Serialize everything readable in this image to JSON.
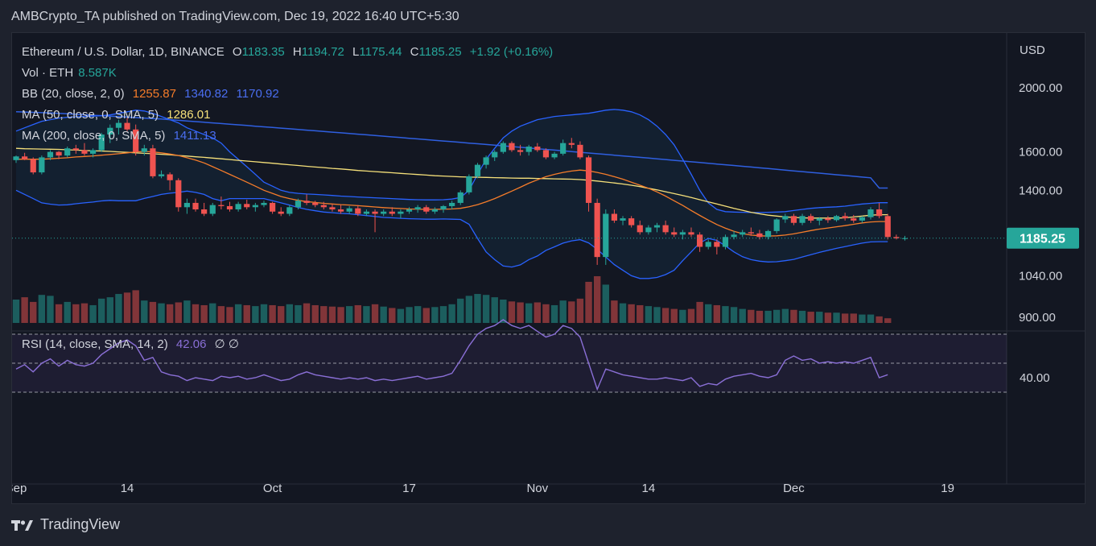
{
  "publisher_line": "AMBCrypto_TA published on TradingView.com, Dec 19, 2022 16:40 UTC+5:30",
  "footer_brand": "TradingView",
  "legend": {
    "symbol": "Ethereum / U.S. Dollar, 1D, BINANCE",
    "o_label": "O",
    "o": "1183.35",
    "h_label": "H",
    "h": "1194.72",
    "l_label": "L",
    "l": "1175.44",
    "c_label": "C",
    "c": "1185.25",
    "change": "+1.92 (+0.16%)",
    "vol_label": "Vol · ETH",
    "vol_value": "8.587K",
    "bb_label": "BB (20, close, 2, 0)",
    "bb_basis": "1255.87",
    "bb_upper": "1340.82",
    "bb_lower": "1170.92",
    "ma50_label": "MA (50, close, 0, SMA, 5)",
    "ma50_value": "1286.01",
    "ma200_label": "MA (200, close, 0, SMA, 5)",
    "ma200_value": "1411.13",
    "rsi_label": "RSI (14, close, SMA, 14, 2)",
    "rsi_value": "42.06",
    "rsi_extra": "∅ ∅"
  },
  "colors": {
    "up": "#26a69a",
    "down": "#ef5350",
    "bb_basis": "#f57c2a",
    "bb_band": "#2962ff",
    "ma50": "#f5e07a",
    "ma200": "#2f5fe0",
    "rsi": "#8a6fd6",
    "price_tag": "#26a69a"
  },
  "chart_data": {
    "type": "candlestick",
    "y_axis_unit": "USD",
    "y_ticks": [
      900,
      1040,
      1400,
      1600,
      2000
    ],
    "y_tick_labels": [
      "900.00",
      "1040.00",
      "1400.00",
      "1600.00",
      "2000.00"
    ],
    "last_price": 1185.25,
    "last_price_label": "1185.25",
    "x_tick_labels": [
      {
        "label": "Sep",
        "index": 0
      },
      {
        "label": "14",
        "index": 13
      },
      {
        "label": "Oct",
        "index": 30
      },
      {
        "label": "17",
        "index": 46
      },
      {
        "label": "Nov",
        "index": 61
      },
      {
        "label": "14",
        "index": 74
      },
      {
        "label": "Dec",
        "index": 91
      },
      {
        "label": "19",
        "index": 109
      }
    ],
    "candles": [
      [
        1555,
        1580,
        1540,
        1575
      ],
      [
        1575,
        1595,
        1555,
        1560
      ],
      [
        1560,
        1570,
        1480,
        1490
      ],
      [
        1490,
        1580,
        1480,
        1570
      ],
      [
        1570,
        1610,
        1555,
        1600
      ],
      [
        1600,
        1605,
        1560,
        1580
      ],
      [
        1580,
        1630,
        1570,
        1620
      ],
      [
        1620,
        1640,
        1590,
        1610
      ],
      [
        1610,
        1650,
        1580,
        1590
      ],
      [
        1590,
        1620,
        1570,
        1610
      ],
      [
        1610,
        1710,
        1600,
        1700
      ],
      [
        1700,
        1760,
        1650,
        1740
      ],
      [
        1740,
        1790,
        1700,
        1770
      ],
      [
        1770,
        1800,
        1720,
        1730
      ],
      [
        1730,
        1760,
        1580,
        1600
      ],
      [
        1600,
        1640,
        1580,
        1620
      ],
      [
        1620,
        1640,
        1460,
        1470
      ],
      [
        1470,
        1500,
        1460,
        1480
      ],
      [
        1480,
        1490,
        1400,
        1450
      ],
      [
        1450,
        1460,
        1300,
        1320
      ],
      [
        1320,
        1360,
        1290,
        1340
      ],
      [
        1340,
        1360,
        1300,
        1310
      ],
      [
        1310,
        1340,
        1280,
        1290
      ],
      [
        1290,
        1340,
        1280,
        1330
      ],
      [
        1330,
        1370,
        1310,
        1325
      ],
      [
        1325,
        1345,
        1300,
        1310
      ],
      [
        1310,
        1345,
        1300,
        1335
      ],
      [
        1335,
        1355,
        1310,
        1320
      ],
      [
        1320,
        1340,
        1300,
        1330
      ],
      [
        1330,
        1350,
        1320,
        1340
      ],
      [
        1340,
        1345,
        1290,
        1300
      ],
      [
        1300,
        1320,
        1280,
        1290
      ],
      [
        1290,
        1330,
        1280,
        1320
      ],
      [
        1320,
        1360,
        1310,
        1350
      ],
      [
        1350,
        1380,
        1330,
        1340
      ],
      [
        1340,
        1350,
        1320,
        1330
      ],
      [
        1330,
        1345,
        1310,
        1320
      ],
      [
        1320,
        1335,
        1300,
        1310
      ],
      [
        1310,
        1330,
        1290,
        1300
      ],
      [
        1300,
        1325,
        1290,
        1315
      ],
      [
        1315,
        1330,
        1280,
        1290
      ],
      [
        1290,
        1310,
        1280,
        1300
      ],
      [
        1300,
        1310,
        1210,
        1290
      ],
      [
        1290,
        1310,
        1280,
        1300
      ],
      [
        1300,
        1320,
        1280,
        1290
      ],
      [
        1290,
        1310,
        1270,
        1300
      ],
      [
        1300,
        1320,
        1290,
        1310
      ],
      [
        1310,
        1330,
        1295,
        1320
      ],
      [
        1320,
        1330,
        1290,
        1300
      ],
      [
        1300,
        1320,
        1290,
        1310
      ],
      [
        1310,
        1330,
        1295,
        1325
      ],
      [
        1325,
        1350,
        1310,
        1340
      ],
      [
        1340,
        1400,
        1330,
        1390
      ],
      [
        1390,
        1480,
        1380,
        1470
      ],
      [
        1470,
        1540,
        1460,
        1530
      ],
      [
        1530,
        1580,
        1510,
        1570
      ],
      [
        1570,
        1610,
        1550,
        1600
      ],
      [
        1600,
        1660,
        1590,
        1650
      ],
      [
        1650,
        1660,
        1600,
        1610
      ],
      [
        1610,
        1640,
        1580,
        1600
      ],
      [
        1600,
        1640,
        1580,
        1630
      ],
      [
        1630,
        1650,
        1600,
        1610
      ],
      [
        1610,
        1620,
        1560,
        1570
      ],
      [
        1570,
        1600,
        1560,
        1590
      ],
      [
        1590,
        1670,
        1580,
        1650
      ],
      [
        1650,
        1680,
        1620,
        1640
      ],
      [
        1640,
        1660,
        1560,
        1570
      ],
      [
        1570,
        1580,
        1300,
        1340
      ],
      [
        1340,
        1360,
        1080,
        1110
      ],
      [
        1110,
        1310,
        1080,
        1290
      ],
      [
        1290,
        1310,
        1250,
        1260
      ],
      [
        1260,
        1280,
        1240,
        1270
      ],
      [
        1270,
        1280,
        1230,
        1240
      ],
      [
        1240,
        1260,
        1200,
        1210
      ],
      [
        1210,
        1240,
        1200,
        1230
      ],
      [
        1230,
        1250,
        1210,
        1240
      ],
      [
        1240,
        1260,
        1200,
        1210
      ],
      [
        1210,
        1230,
        1190,
        1200
      ],
      [
        1200,
        1220,
        1180,
        1210
      ],
      [
        1210,
        1230,
        1190,
        1200
      ],
      [
        1200,
        1210,
        1130,
        1150
      ],
      [
        1150,
        1180,
        1140,
        1170
      ],
      [
        1170,
        1180,
        1120,
        1150
      ],
      [
        1150,
        1200,
        1140,
        1190
      ],
      [
        1190,
        1215,
        1180,
        1200
      ],
      [
        1200,
        1220,
        1190,
        1210
      ],
      [
        1210,
        1230,
        1195,
        1205
      ],
      [
        1205,
        1220,
        1180,
        1190
      ],
      [
        1190,
        1220,
        1180,
        1215
      ],
      [
        1215,
        1270,
        1205,
        1265
      ],
      [
        1265,
        1290,
        1250,
        1280
      ],
      [
        1280,
        1290,
        1240,
        1250
      ],
      [
        1250,
        1290,
        1240,
        1280
      ],
      [
        1280,
        1290,
        1250,
        1260
      ],
      [
        1260,
        1275,
        1240,
        1270
      ],
      [
        1270,
        1280,
        1250,
        1262
      ],
      [
        1262,
        1285,
        1255,
        1280
      ],
      [
        1280,
        1295,
        1260,
        1270
      ],
      [
        1270,
        1285,
        1250,
        1260
      ],
      [
        1260,
        1280,
        1250,
        1275
      ],
      [
        1275,
        1320,
        1265,
        1310
      ],
      [
        1310,
        1340,
        1270,
        1280
      ],
      [
        1280,
        1290,
        1180,
        1190
      ],
      [
        1190,
        1200,
        1180,
        1185
      ],
      [
        1183.35,
        1194.72,
        1175.44,
        1185.25
      ]
    ],
    "ma50": [
      1620,
      1618,
      1617,
      1616,
      1615,
      1614,
      1612,
      1610,
      1608,
      1606,
      1605,
      1603,
      1600,
      1598,
      1595,
      1592,
      1590,
      1587,
      1584,
      1580,
      1577,
      1573,
      1570,
      1566,
      1562,
      1558,
      1554,
      1550,
      1546,
      1542,
      1538,
      1534,
      1530,
      1526,
      1522,
      1518,
      1515,
      1511,
      1508,
      1504,
      1500,
      1497,
      1494,
      1491,
      1488,
      1485,
      1482,
      1479,
      1476,
      1473,
      1471,
      1469,
      1467,
      1466,
      1465,
      1464,
      1463,
      1462,
      1461,
      1460,
      1460,
      1459,
      1458,
      1457,
      1456,
      1455,
      1453,
      1450,
      1446,
      1441,
      1436,
      1431,
      1425,
      1418,
      1410,
      1402,
      1393,
      1384,
      1375,
      1365,
      1355,
      1345,
      1335,
      1325,
      1315,
      1306,
      1297,
      1290,
      1284,
      1280,
      1276,
      1274,
      1272,
      1271,
      1271,
      1271,
      1271,
      1272,
      1276,
      1280,
      1284,
      1286.01,
      1286.01
    ],
    "ma200": [
      1840,
      1838,
      1836,
      1834,
      1832,
      1830,
      1827,
      1824,
      1821,
      1818,
      1815,
      1812,
      1809,
      1806,
      1803,
      1800,
      1797,
      1794,
      1790,
      1786,
      1782,
      1778,
      1774,
      1770,
      1766,
      1762,
      1758,
      1754,
      1750,
      1746,
      1742,
      1738,
      1734,
      1730,
      1726,
      1722,
      1718,
      1714,
      1710,
      1706,
      1702,
      1698,
      1694,
      1690,
      1686,
      1682,
      1678,
      1674,
      1670,
      1666,
      1662,
      1658,
      1654,
      1650,
      1646,
      1642,
      1638,
      1634,
      1630,
      1626,
      1622,
      1618,
      1614,
      1610,
      1606,
      1602,
      1598,
      1594,
      1590,
      1586,
      1582,
      1578,
      1574,
      1570,
      1566,
      1562,
      1558,
      1554,
      1550,
      1546,
      1542,
      1538,
      1534,
      1530,
      1526,
      1522,
      1518,
      1514,
      1510,
      1506,
      1502,
      1498,
      1494,
      1490,
      1486,
      1482,
      1478,
      1474,
      1470,
      1466,
      1462,
      1411.13,
      1411.13
    ],
    "bb_basis": [
      1560,
      1560,
      1560,
      1560,
      1562,
      1565,
      1568,
      1572,
      1575,
      1578,
      1582,
      1586,
      1590,
      1595,
      1600,
      1603,
      1600,
      1595,
      1588,
      1580,
      1568,
      1555,
      1540,
      1520,
      1500,
      1480,
      1460,
      1440,
      1420,
      1400,
      1385,
      1370,
      1360,
      1352,
      1346,
      1342,
      1338,
      1335,
      1332,
      1330,
      1327,
      1324,
      1321,
      1318,
      1316,
      1314,
      1312,
      1311,
      1310,
      1310,
      1311,
      1312,
      1315,
      1322,
      1332,
      1345,
      1360,
      1378,
      1396,
      1415,
      1435,
      1452,
      1468,
      1480,
      1490,
      1497,
      1502,
      1498,
      1490,
      1480,
      1468,
      1455,
      1440,
      1425,
      1410,
      1392,
      1372,
      1350,
      1328,
      1305,
      1283,
      1262,
      1243,
      1227,
      1214,
      1204,
      1198,
      1195,
      1194,
      1195,
      1198,
      1203,
      1210,
      1217,
      1223,
      1228,
      1233,
      1238,
      1244,
      1250,
      1254,
      1255.87,
      1255.87
    ],
    "bb_upper": [
      1720,
      1740,
      1760,
      1780,
      1790,
      1800,
      1805,
      1808,
      1810,
      1812,
      1815,
      1820,
      1830,
      1840,
      1850,
      1845,
      1830,
      1810,
      1790,
      1770,
      1740,
      1720,
      1700,
      1680,
      1650,
      1600,
      1560,
      1520,
      1480,
      1440,
      1420,
      1400,
      1390,
      1385,
      1382,
      1380,
      1378,
      1375,
      1372,
      1370,
      1368,
      1366,
      1364,
      1362,
      1360,
      1358,
      1356,
      1355,
      1354,
      1354,
      1355,
      1358,
      1365,
      1400,
      1480,
      1560,
      1620,
      1680,
      1720,
      1750,
      1770,
      1790,
      1800,
      1810,
      1815,
      1820,
      1825,
      1830,
      1840,
      1850,
      1855,
      1850,
      1840,
      1820,
      1790,
      1750,
      1700,
      1640,
      1560,
      1480,
      1400,
      1340,
      1310,
      1300,
      1298,
      1297,
      1296,
      1296,
      1297,
      1298,
      1300,
      1305,
      1310,
      1315,
      1318,
      1320,
      1322,
      1325,
      1330,
      1335,
      1338,
      1340.82,
      1340.82
    ],
    "bb_lower": [
      1400,
      1380,
      1360,
      1340,
      1334,
      1330,
      1331,
      1336,
      1340,
      1344,
      1349,
      1352,
      1350,
      1350,
      1350,
      1361,
      1370,
      1380,
      1386,
      1390,
      1396,
      1390,
      1380,
      1360,
      1350,
      1360,
      1360,
      1360,
      1360,
      1360,
      1350,
      1340,
      1330,
      1319,
      1310,
      1304,
      1298,
      1295,
      1292,
      1290,
      1286,
      1282,
      1278,
      1274,
      1272,
      1270,
      1268,
      1267,
      1266,
      1266,
      1267,
      1266,
      1265,
      1244,
      1184,
      1130,
      1100,
      1076,
      1072,
      1080,
      1100,
      1114,
      1136,
      1150,
      1165,
      1174,
      1179,
      1166,
      1140,
      1110,
      1081,
      1060,
      1040,
      1030,
      1030,
      1034,
      1044,
      1060,
      1096,
      1130,
      1166,
      1184,
      1176,
      1154,
      1130,
      1111,
      1100,
      1094,
      1091,
      1092,
      1096,
      1101,
      1110,
      1119,
      1128,
      1136,
      1144,
      1151,
      1158,
      1165,
      1170,
      1170.92,
      1170.92
    ],
    "volume": [
      50,
      55,
      45,
      60,
      58,
      40,
      45,
      40,
      42,
      38,
      52,
      55,
      62,
      65,
      70,
      48,
      45,
      42,
      40,
      44,
      48,
      40,
      38,
      42,
      36,
      34,
      40,
      38,
      36,
      40,
      38,
      36,
      40,
      38,
      42,
      38,
      36,
      35,
      34,
      36,
      38,
      36,
      40,
      35,
      32,
      30,
      34,
      36,
      32,
      34,
      36,
      40,
      52,
      58,
      62,
      60,
      55,
      50,
      46,
      44,
      42,
      44,
      40,
      38,
      48,
      46,
      52,
      88,
      100,
      82,
      48,
      42,
      40,
      38,
      36,
      34,
      32,
      30,
      28,
      30,
      45,
      40,
      38,
      36,
      34,
      30,
      28,
      26,
      26,
      28,
      30,
      28,
      26,
      24,
      24,
      22,
      22,
      20,
      20,
      18,
      18,
      14,
      10
    ],
    "rsi": [
      46,
      49,
      44,
      50,
      53,
      48,
      52,
      49,
      48,
      50,
      56,
      60,
      64,
      66,
      62,
      52,
      54,
      44,
      42,
      41,
      38,
      40,
      39,
      38,
      41,
      40,
      41,
      39,
      40,
      42,
      40,
      38,
      39,
      42,
      44,
      42,
      41,
      40,
      39,
      40,
      39,
      40,
      38,
      39,
      38,
      39,
      40,
      41,
      39,
      40,
      41,
      43,
      52,
      62,
      70,
      74,
      76,
      80,
      76,
      74,
      76,
      72,
      68,
      70,
      76,
      74,
      68,
      50,
      32,
      46,
      44,
      42,
      41,
      40,
      39,
      39,
      40,
      39,
      38,
      40,
      34,
      36,
      35,
      39,
      41,
      42,
      43,
      41,
      40,
      42,
      52,
      55,
      52,
      53,
      50,
      51,
      50,
      51,
      50,
      52,
      54,
      40,
      42.06
    ],
    "rsi_levels": [
      70,
      50,
      30
    ]
  }
}
